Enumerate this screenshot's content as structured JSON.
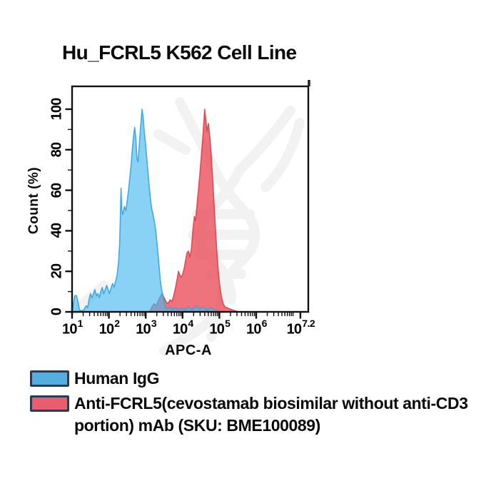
{
  "title": "Hu_FCRL5 K562 Cell Line",
  "chart_data": {
    "type": "area",
    "title": "Hu_FCRL5 K562 Cell Line",
    "subtitle": "",
    "xlabel": "APC-A",
    "ylabel": "Count (%)",
    "x_scale": "log10",
    "x_tick_base": "10",
    "xlim_log": [
      1,
      7.41
    ],
    "ylim": [
      0,
      100
    ],
    "grid": false,
    "legend_position": "bottom-left",
    "x_ticks": [
      {
        "v": 1,
        "exp": "1"
      },
      {
        "v": 2,
        "exp": "2"
      },
      {
        "v": 3,
        "exp": "3"
      },
      {
        "v": 4,
        "exp": "4"
      },
      {
        "v": 5,
        "exp": "5"
      },
      {
        "v": 6,
        "exp": "6"
      },
      {
        "v": 7.2,
        "exp": "7.2"
      }
    ],
    "y_ticks": [
      0,
      20,
      40,
      60,
      80,
      100
    ],
    "series": [
      {
        "name": "Human IgG",
        "fill": "#4ab9ef",
        "stroke": "#31a5dc",
        "fill_opacity": 0.65,
        "peak_log10_apc": 2.9,
        "points": [
          [
            1.0,
            0
          ],
          [
            1.03,
            3
          ],
          [
            1.07,
            8
          ],
          [
            1.12,
            8
          ],
          [
            1.16,
            5
          ],
          [
            1.2,
            1
          ],
          [
            1.26,
            0.5
          ],
          [
            1.32,
            1
          ],
          [
            1.38,
            3
          ],
          [
            1.42,
            2
          ],
          [
            1.46,
            6
          ],
          [
            1.5,
            9
          ],
          [
            1.54,
            7
          ],
          [
            1.58,
            9
          ],
          [
            1.62,
            11
          ],
          [
            1.66,
            8
          ],
          [
            1.7,
            9
          ],
          [
            1.74,
            7
          ],
          [
            1.78,
            10
          ],
          [
            1.82,
            12
          ],
          [
            1.86,
            9
          ],
          [
            1.9,
            11
          ],
          [
            1.94,
            13
          ],
          [
            1.98,
            11
          ],
          [
            2.02,
            9
          ],
          [
            2.06,
            12
          ],
          [
            2.1,
            14
          ],
          [
            2.14,
            12
          ],
          [
            2.18,
            15
          ],
          [
            2.22,
            18
          ],
          [
            2.26,
            24
          ],
          [
            2.29,
            33
          ],
          [
            2.31,
            46
          ],
          [
            2.33,
            61
          ],
          [
            2.35,
            50
          ],
          [
            2.38,
            48
          ],
          [
            2.42,
            52
          ],
          [
            2.46,
            50
          ],
          [
            2.5,
            55
          ],
          [
            2.55,
            63
          ],
          [
            2.6,
            72
          ],
          [
            2.64,
            81
          ],
          [
            2.67,
            87
          ],
          [
            2.7,
            91
          ],
          [
            2.73,
            86
          ],
          [
            2.76,
            76
          ],
          [
            2.79,
            74
          ],
          [
            2.82,
            81
          ],
          [
            2.86,
            91
          ],
          [
            2.9,
            100
          ],
          [
            2.93,
            96
          ],
          [
            2.96,
            89
          ],
          [
            3.0,
            82
          ],
          [
            3.04,
            73
          ],
          [
            3.08,
            65
          ],
          [
            3.12,
            57
          ],
          [
            3.16,
            51
          ],
          [
            3.2,
            48
          ],
          [
            3.24,
            44
          ],
          [
            3.28,
            39
          ],
          [
            3.32,
            31
          ],
          [
            3.36,
            23
          ],
          [
            3.4,
            15
          ],
          [
            3.44,
            10
          ],
          [
            3.47,
            8
          ],
          [
            3.5,
            5
          ],
          [
            3.54,
            2
          ],
          [
            3.6,
            1.5
          ],
          [
            3.66,
            2.5
          ],
          [
            3.72,
            1
          ],
          [
            3.8,
            2
          ],
          [
            3.88,
            1
          ],
          [
            3.96,
            2
          ],
          [
            4.06,
            1
          ],
          [
            4.16,
            2.5
          ],
          [
            4.26,
            1
          ],
          [
            4.36,
            3
          ],
          [
            4.46,
            1.5
          ],
          [
            4.56,
            2.5
          ],
          [
            4.66,
            1
          ],
          [
            4.76,
            2
          ],
          [
            4.86,
            1
          ],
          [
            4.95,
            0.5
          ],
          [
            5.05,
            0
          ]
        ]
      },
      {
        "name": "Anti-FCRL5(cevostamab biosimilar without anti-CD3 portion) mAb (SKU: BME100089)",
        "fill": "#e93d4a",
        "stroke": "#d8414e",
        "fill_opacity": 0.72,
        "peak_log10_apc": 4.6,
        "points": [
          [
            3.1,
            0
          ],
          [
            3.16,
            2
          ],
          [
            3.22,
            4
          ],
          [
            3.28,
            3
          ],
          [
            3.33,
            5
          ],
          [
            3.38,
            7
          ],
          [
            3.44,
            9
          ],
          [
            3.5,
            7
          ],
          [
            3.55,
            5
          ],
          [
            3.6,
            4
          ],
          [
            3.66,
            6
          ],
          [
            3.71,
            5
          ],
          [
            3.76,
            8
          ],
          [
            3.81,
            12
          ],
          [
            3.85,
            16
          ],
          [
            3.89,
            20
          ],
          [
            3.93,
            18
          ],
          [
            3.97,
            17
          ],
          [
            4.01,
            19
          ],
          [
            4.05,
            22
          ],
          [
            4.09,
            26
          ],
          [
            4.12,
            29
          ],
          [
            4.16,
            30
          ],
          [
            4.2,
            27
          ],
          [
            4.24,
            31
          ],
          [
            4.28,
            40
          ],
          [
            4.32,
            47
          ],
          [
            4.35,
            45
          ],
          [
            4.39,
            52
          ],
          [
            4.43,
            60
          ],
          [
            4.47,
            68
          ],
          [
            4.51,
            77
          ],
          [
            4.55,
            86
          ],
          [
            4.58,
            94
          ],
          [
            4.6,
            100
          ],
          [
            4.63,
            95
          ],
          [
            4.66,
            89
          ],
          [
            4.7,
            93
          ],
          [
            4.73,
            88
          ],
          [
            4.77,
            80
          ],
          [
            4.81,
            68
          ],
          [
            4.85,
            55
          ],
          [
            4.89,
            42
          ],
          [
            4.93,
            30
          ],
          [
            4.97,
            20
          ],
          [
            5.01,
            13
          ],
          [
            5.05,
            8
          ],
          [
            5.1,
            4
          ],
          [
            5.15,
            2.5
          ],
          [
            5.21,
            2
          ],
          [
            5.28,
            1.5
          ],
          [
            5.36,
            1
          ],
          [
            5.44,
            0.5
          ],
          [
            5.52,
            0
          ]
        ]
      }
    ]
  },
  "legend": {
    "items": [
      {
        "swatch_fill": "#55aede",
        "swatch_border": "#2e3a50"
      },
      {
        "swatch_fill": "#ea5d6e",
        "swatch_border": "#2e3a50"
      }
    ]
  },
  "colors": {
    "axis": "#111111",
    "watermark": "#f2f2f2",
    "overlap_blend": "#8399bd"
  }
}
